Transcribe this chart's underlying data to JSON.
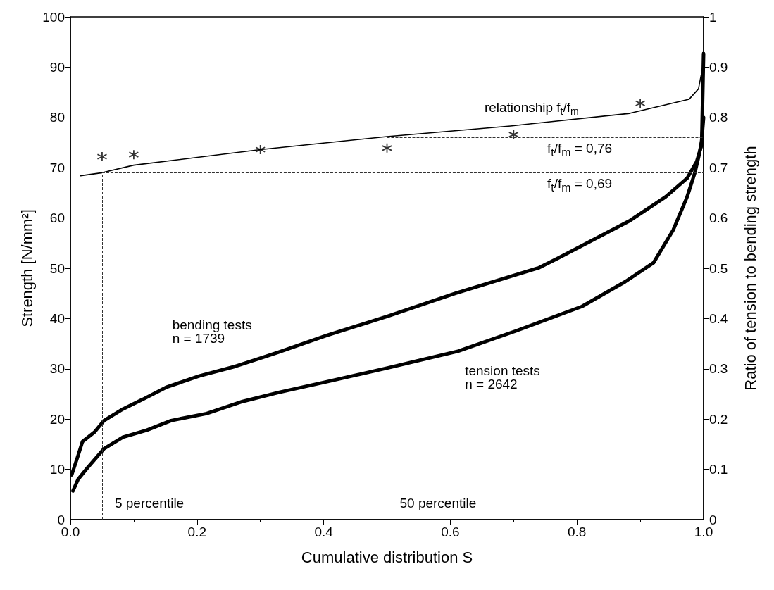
{
  "chart_data": {
    "type": "line",
    "xlabel": "Cumulative distribution S",
    "ylabel": "Strength [N/mm²]",
    "y2label": "Ratio of tension to bending strength",
    "xlim": [
      0,
      1
    ],
    "xticks": [
      {
        "value": 0,
        "label": "0.0"
      },
      {
        "value": 0.2,
        "label": "0.2"
      },
      {
        "value": 0.4,
        "label": "0.4"
      },
      {
        "value": 0.6,
        "label": "0.6"
      },
      {
        "value": 0.8,
        "label": "0.8"
      },
      {
        "value": 1,
        "label": "1.0"
      }
    ],
    "ylim": [
      0,
      100
    ],
    "yticks": [
      0,
      10,
      20,
      30,
      40,
      50,
      60,
      70,
      80,
      90,
      100
    ],
    "y2lim": [
      0,
      1
    ],
    "y2ticks": [
      0,
      0.1,
      0.2,
      0.3,
      0.4,
      0.5,
      0.6,
      0.7,
      0.8,
      0.9,
      1
    ],
    "grid": false,
    "legend": false,
    "marker": "none",
    "line_style": "solid",
    "series": [
      {
        "name": "bending tests\nn = 1739",
        "color": "#000000",
        "x": [
          0.002,
          0.012,
          0.019,
          0.038,
          0.053,
          0.083,
          0.114,
          0.151,
          0.204,
          0.261,
          0.329,
          0.404,
          0.502,
          0.608,
          0.74,
          0.77,
          0.884,
          0.94,
          0.974,
          0.989,
          0.997,
          1.0
        ],
        "values": [
          8.9,
          12.7,
          15.5,
          17.4,
          19.7,
          22.0,
          23.9,
          26.3,
          28.6,
          30.5,
          33.3,
          36.6,
          40.5,
          45.0,
          50.1,
          52.0,
          59.5,
          64.2,
          67.9,
          71.2,
          74.5,
          92.7
        ]
      },
      {
        "name": "tension tests\nn = 2642",
        "color": "#000000",
        "x": [
          0.004,
          0.012,
          0.027,
          0.053,
          0.083,
          0.121,
          0.159,
          0.215,
          0.272,
          0.329,
          0.404,
          0.502,
          0.612,
          0.703,
          0.808,
          0.876,
          0.921,
          0.952,
          0.974,
          0.986,
          0.993,
          0.997,
          1.0
        ],
        "values": [
          5.7,
          8.0,
          10.3,
          14.1,
          16.4,
          17.8,
          19.7,
          21.1,
          23.5,
          25.3,
          27.4,
          30.2,
          33.5,
          37.5,
          42.4,
          47.3,
          51.1,
          57.6,
          64.2,
          68.9,
          72.6,
          75.4,
          80.0
        ]
      },
      {
        "name": "relationship f$_{t}$/f$_{m}$",
        "color": "#000000",
        "axis": "y2",
        "x": [
          0.016,
          0.05,
          0.1,
          0.3,
          0.5,
          0.695,
          0.883,
          0.977,
          0.992,
          1.0
        ],
        "values": [
          0.684,
          0.69,
          0.705,
          0.736,
          0.762,
          0.783,
          0.808,
          0.836,
          0.857,
          0.909
        ]
      },
      {
        "type": "scatter",
        "marker": "cross",
        "color": "#000000",
        "axis": "y2",
        "x": [
          0.05,
          0.1,
          0.3,
          0.5,
          0.7,
          0.9
        ],
        "values": [
          0.722,
          0.726,
          0.736,
          0.739,
          0.766,
          0.828
        ]
      }
    ],
    "ref_lines": [
      {
        "axis": "x",
        "value": 0.05,
        "label": "5 percentile",
        "line_style": "dashed"
      },
      {
        "axis": "x",
        "value": 0.5,
        "label": "50 percentile",
        "line_style": "dashed"
      },
      {
        "axis": "y2",
        "value": 0.69,
        "label": "f$_{t}$/f$_{m}$ = 0,69",
        "line_style": "dashed"
      },
      {
        "axis": "y2",
        "value": 0.76,
        "label": "f$_{t}$/f$_{m}$ = 0,76",
        "line_style": "dashed"
      }
    ]
  }
}
